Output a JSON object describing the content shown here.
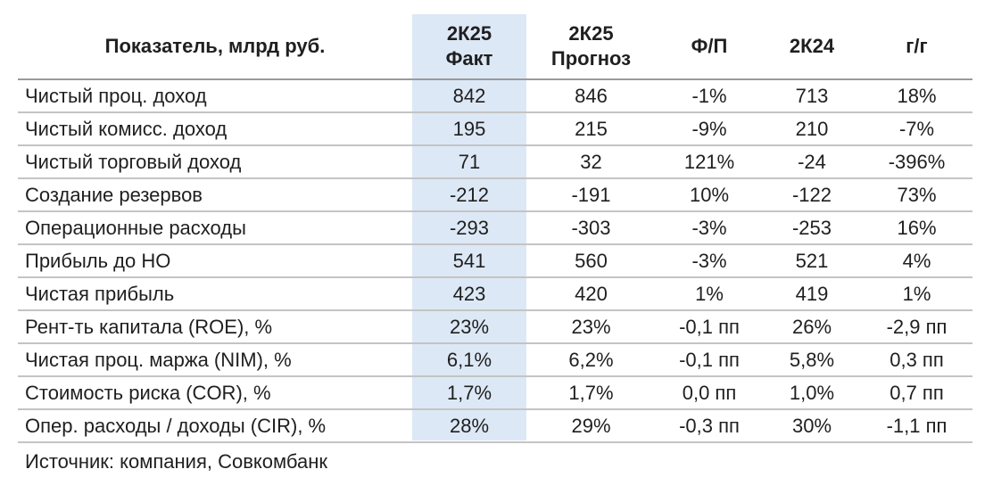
{
  "header": {
    "indicator": "Показатель, млрд руб.",
    "col1_line1": "2К25",
    "col1_line2": "Факт",
    "col2_line1": "2К25",
    "col2_line2": "Прогноз",
    "col3": "Ф/П",
    "col4": "2К24",
    "col5": "г/г"
  },
  "rows": [
    {
      "label": "Чистый проц. доход",
      "fact": "842",
      "forecast": "846",
      "fp": "-1%",
      "prev": "713",
      "yoy": "18%"
    },
    {
      "label": "Чистый комисс. доход",
      "fact": "195",
      "forecast": "215",
      "fp": "-9%",
      "prev": "210",
      "yoy": "-7%"
    },
    {
      "label": "Чистый торговый доход",
      "fact": "71",
      "forecast": "32",
      "fp": "121%",
      "prev": "-24",
      "yoy": "-396%"
    },
    {
      "label": "Создание резервов",
      "fact": "-212",
      "forecast": "-191",
      "fp": "10%",
      "prev": "-122",
      "yoy": "73%"
    },
    {
      "label": "Операционные расходы",
      "fact": "-293",
      "forecast": "-303",
      "fp": "-3%",
      "prev": "-253",
      "yoy": "16%"
    },
    {
      "label": "Прибыль до НО",
      "fact": "541",
      "forecast": "560",
      "fp": "-3%",
      "prev": "521",
      "yoy": "4%"
    },
    {
      "label": "Чистая прибыль",
      "fact": "423",
      "forecast": "420",
      "fp": "1%",
      "prev": "419",
      "yoy": "1%"
    },
    {
      "label": "Рент-ть капитала (ROE), %",
      "fact": "23%",
      "forecast": "23%",
      "fp": "-0,1 пп",
      "prev": "26%",
      "yoy": "-2,9 пп"
    },
    {
      "label": "Чистая проц. маржа (NIM), %",
      "fact": "6,1%",
      "forecast": "6,2%",
      "fp": "-0,1 пп",
      "prev": "5,8%",
      "yoy": "0,3 пп"
    },
    {
      "label": "Стоимость риска (COR), %",
      "fact": "1,7%",
      "forecast": "1,7%",
      "fp": "0,0 пп",
      "prev": "1,0%",
      "yoy": "0,7 пп"
    },
    {
      "label": "Опер. расходы / доходы (CIR), %",
      "fact": "28%",
      "forecast": "29%",
      "fp": "-0,3 пп",
      "prev": "30%",
      "yoy": "-1,1 пп"
    }
  ],
  "source": "Источник: компания, Совкомбанк",
  "colors": {
    "highlight": "#dde8f6"
  }
}
